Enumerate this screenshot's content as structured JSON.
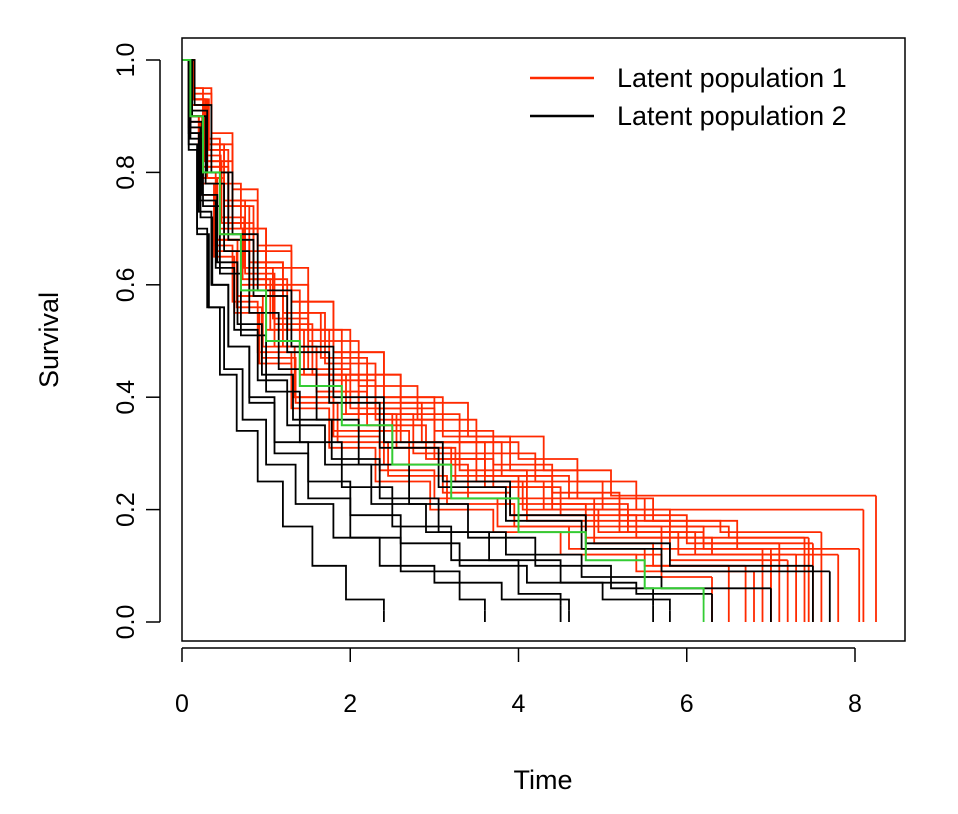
{
  "chart_data": {
    "type": "line",
    "step": true,
    "xlabel": "Time",
    "ylabel": "Survival",
    "xlim": [
      0,
      8.3
    ],
    "ylim": [
      0,
      1.0
    ],
    "x_ticks": [
      "0",
      "2",
      "4",
      "6",
      "8"
    ],
    "y_ticks": [
      "0.0",
      "0.2",
      "0.4",
      "0.6",
      "0.8",
      "1.0"
    ],
    "legend": {
      "placement": "top-right"
    },
    "legend_entries": [
      {
        "label": "Latent population 1",
        "color": "#ff2a00"
      },
      {
        "label": "Latent population 2",
        "color": "#000000"
      }
    ],
    "series": [
      {
        "name": "Latent population 1",
        "color": "#ff2a00",
        "curves": [
          {
            "x": [
              0,
              0.15,
              0.3,
              0.5,
              0.75,
              1.0,
              1.4,
              1.9,
              2.6,
              3.4,
              4.3,
              5.1,
              5.9,
              8.25
            ],
            "y": [
              1.0,
              0.93,
              0.85,
              0.75,
              0.66,
              0.59,
              0.52,
              0.44,
              0.39,
              0.33,
              0.27,
              0.225,
              0.225,
              0.225
            ]
          },
          {
            "x": [
              0,
              0.1,
              0.25,
              0.45,
              0.7,
              1.0,
              1.5,
              2.0,
              2.6,
              3.3,
              4.0,
              4.7,
              5.4,
              8.1
            ],
            "y": [
              1.0,
              0.95,
              0.86,
              0.78,
              0.7,
              0.63,
              0.52,
              0.44,
              0.37,
              0.32,
              0.29,
              0.25,
              0.2,
              0.2
            ]
          },
          {
            "x": [
              0,
              0.1,
              0.3,
              0.6,
              1.0,
              1.5,
              2.1,
              2.8,
              3.5,
              4.2,
              5.0,
              5.8,
              6.5,
              7.4
            ],
            "y": [
              1.0,
              0.92,
              0.82,
              0.7,
              0.6,
              0.5,
              0.42,
              0.36,
              0.3,
              0.25,
              0.2,
              0.17,
              0.15,
              0.15
            ]
          },
          {
            "x": [
              0,
              0.1,
              0.2,
              0.4,
              0.7,
              1.1,
              1.6,
              2.2,
              2.9,
              3.6,
              4.4,
              5.3,
              6.2,
              7.1
            ],
            "y": [
              1.0,
              0.9,
              0.8,
              0.68,
              0.58,
              0.49,
              0.41,
              0.35,
              0.29,
              0.24,
              0.2,
              0.17,
              0.14,
              0.14
            ]
          },
          {
            "x": [
              0,
              0.12,
              0.28,
              0.5,
              0.8,
              1.2,
              1.7,
              2.3,
              3.0,
              3.8,
              4.6,
              5.5,
              6.4,
              7.6
            ],
            "y": [
              1.0,
              0.93,
              0.84,
              0.74,
              0.64,
              0.55,
              0.46,
              0.38,
              0.32,
              0.26,
              0.22,
              0.18,
              0.16,
              0.16
            ]
          },
          {
            "x": [
              0,
              0.1,
              0.25,
              0.45,
              0.7,
              1.0,
              1.4,
              1.9,
              2.5,
              3.2,
              4.0,
              4.8,
              5.7,
              6.9
            ],
            "y": [
              1.0,
              0.9,
              0.79,
              0.69,
              0.6,
              0.52,
              0.44,
              0.37,
              0.31,
              0.26,
              0.21,
              0.17,
              0.13,
              0.13
            ]
          },
          {
            "x": [
              0,
              0.15,
              0.35,
              0.6,
              0.9,
              1.3,
              1.8,
              2.4,
              3.1,
              3.9,
              4.7,
              5.6,
              6.6,
              8.05
            ],
            "y": [
              1.0,
              0.94,
              0.85,
              0.75,
              0.66,
              0.57,
              0.48,
              0.4,
              0.33,
              0.27,
              0.22,
              0.18,
              0.13,
              0.13
            ]
          },
          {
            "x": [
              0,
              0.08,
              0.2,
              0.38,
              0.6,
              0.9,
              1.3,
              1.8,
              2.4,
              3.1,
              3.9,
              4.8,
              5.8,
              7.2
            ],
            "y": [
              1.0,
              0.9,
              0.78,
              0.67,
              0.57,
              0.48,
              0.4,
              0.34,
              0.28,
              0.23,
              0.19,
              0.15,
              0.11,
              0.11
            ]
          },
          {
            "x": [
              0,
              0.1,
              0.3,
              0.55,
              0.85,
              1.25,
              1.75,
              2.3,
              3.0,
              3.7,
              4.5,
              5.4,
              6.3,
              7.0
            ],
            "y": [
              1.0,
              0.91,
              0.81,
              0.71,
              0.61,
              0.52,
              0.43,
              0.36,
              0.29,
              0.24,
              0.19,
              0.15,
              0.12,
              0.12
            ]
          },
          {
            "x": [
              0,
              0.12,
              0.3,
              0.5,
              0.8,
              1.2,
              1.6,
              2.1,
              2.7,
              3.4,
              4.1,
              4.9,
              5.6,
              6.7
            ],
            "y": [
              1.0,
              0.9,
              0.79,
              0.68,
              0.58,
              0.49,
              0.41,
              0.34,
              0.28,
              0.22,
              0.18,
              0.14,
              0.1,
              0.1
            ]
          },
          {
            "x": [
              0,
              0.1,
              0.22,
              0.4,
              0.65,
              0.95,
              1.35,
              1.85,
              2.45,
              3.15,
              3.95,
              4.8,
              5.7,
              6.3
            ],
            "y": [
              1.0,
              0.89,
              0.78,
              0.66,
              0.56,
              0.47,
              0.39,
              0.32,
              0.26,
              0.21,
              0.17,
              0.12,
              0.08,
              0.08
            ]
          },
          {
            "x": [
              0,
              0.15,
              0.35,
              0.6,
              0.9,
              1.3,
              1.8,
              2.4,
              3.0,
              3.7,
              4.4,
              5.2,
              6.0,
              7.5
            ],
            "y": [
              1.0,
              0.95,
              0.87,
              0.77,
              0.67,
              0.57,
              0.48,
              0.4,
              0.34,
              0.28,
              0.23,
              0.19,
              0.14,
              0.14
            ]
          },
          {
            "x": [
              0,
              0.08,
              0.2,
              0.38,
              0.62,
              0.92,
              1.3,
              1.75,
              2.3,
              2.95,
              3.7,
              4.5,
              5.4,
              6.8
            ],
            "y": [
              1.0,
              0.88,
              0.76,
              0.65,
              0.55,
              0.46,
              0.38,
              0.31,
              0.25,
              0.2,
              0.16,
              0.12,
              0.09,
              0.09
            ]
          },
          {
            "x": [
              0,
              0.12,
              0.27,
              0.47,
              0.75,
              1.1,
              1.55,
              2.1,
              2.75,
              3.5,
              4.3,
              5.2,
              6.1,
              7.3
            ],
            "y": [
              1.0,
              0.92,
              0.82,
              0.71,
              0.62,
              0.53,
              0.44,
              0.37,
              0.3,
              0.25,
              0.2,
              0.16,
              0.12,
              0.12
            ]
          },
          {
            "x": [
              0,
              0.1,
              0.26,
              0.46,
              0.74,
              1.08,
              1.5,
              2.0,
              2.6,
              3.3,
              4.1,
              4.9,
              5.8,
              7.45
            ],
            "y": [
              1.0,
              0.93,
              0.83,
              0.72,
              0.63,
              0.54,
              0.45,
              0.38,
              0.32,
              0.27,
              0.22,
              0.18,
              0.15,
              0.15
            ]
          },
          {
            "x": [
              0,
              0.1,
              0.24,
              0.42,
              0.66,
              0.96,
              1.34,
              1.8,
              2.35,
              3.0,
              3.75,
              4.6,
              5.5,
              6.5
            ],
            "y": [
              1.0,
              0.9,
              0.79,
              0.68,
              0.58,
              0.49,
              0.4,
              0.33,
              0.27,
              0.22,
              0.17,
              0.13,
              0.1,
              0.1
            ]
          },
          {
            "x": [
              0,
              0.14,
              0.32,
              0.55,
              0.85,
              1.2,
              1.65,
              2.2,
              2.85,
              3.6,
              4.4,
              5.3,
              6.2,
              7.0
            ],
            "y": [
              1.0,
              0.93,
              0.84,
              0.74,
              0.64,
              0.55,
              0.47,
              0.39,
              0.32,
              0.26,
              0.21,
              0.16,
              0.13,
              0.13
            ]
          },
          {
            "x": [
              0,
              0.1,
              0.25,
              0.45,
              0.72,
              1.05,
              1.45,
              1.95,
              2.55,
              3.25,
              4.05,
              4.95,
              5.9,
              7.8
            ],
            "y": [
              1.0,
              0.92,
              0.81,
              0.7,
              0.61,
              0.52,
              0.44,
              0.37,
              0.31,
              0.25,
              0.2,
              0.16,
              0.12,
              0.12
            ]
          }
        ]
      },
      {
        "name": "Latent population 2",
        "color": "#000000",
        "curves": [
          {
            "x": [
              0,
              0.08,
              0.18,
              0.3,
              0.45,
              0.65,
              0.9,
              1.2,
              1.55,
              1.95,
              2.4
            ],
            "y": [
              1.0,
              0.85,
              0.7,
              0.56,
              0.44,
              0.34,
              0.25,
              0.17,
              0.1,
              0.04,
              0.02
            ]
          },
          {
            "x": [
              0,
              0.1,
              0.22,
              0.36,
              0.55,
              0.8,
              1.1,
              1.5,
              2.0,
              2.6,
              3.3,
              3.6
            ],
            "y": [
              1.0,
              0.86,
              0.72,
              0.6,
              0.49,
              0.39,
              0.3,
              0.22,
              0.15,
              0.09,
              0.04,
              0.02
            ]
          },
          {
            "x": [
              0,
              0.1,
              0.25,
              0.45,
              0.7,
              1.0,
              1.4,
              1.9,
              2.5,
              3.2,
              4.0,
              4.5
            ],
            "y": [
              1.0,
              0.87,
              0.74,
              0.62,
              0.51,
              0.41,
              0.32,
              0.24,
              0.17,
              0.11,
              0.05,
              0.03
            ]
          },
          {
            "x": [
              0,
              0.12,
              0.28,
              0.5,
              0.8,
              1.15,
              1.6,
              2.1,
              2.7,
              3.4,
              4.2,
              5.1,
              5.6
            ],
            "y": [
              1.0,
              0.9,
              0.78,
              0.66,
              0.55,
              0.45,
              0.36,
              0.28,
              0.21,
              0.15,
              0.1,
              0.06,
              0.03
            ]
          },
          {
            "x": [
              0,
              0.15,
              0.35,
              0.6,
              0.9,
              1.3,
              1.8,
              2.4,
              3.1,
              3.9,
              4.8,
              5.8,
              7.5
            ],
            "y": [
              1.0,
              0.92,
              0.8,
              0.69,
              0.59,
              0.49,
              0.4,
              0.32,
              0.25,
              0.19,
              0.14,
              0.1,
              0.1
            ]
          },
          {
            "x": [
              0,
              0.08,
              0.2,
              0.35,
              0.55,
              0.8,
              1.1,
              1.5,
              2.0,
              2.6,
              3.3,
              4.1,
              5.0,
              5.8
            ],
            "y": [
              1.0,
              0.87,
              0.73,
              0.6,
              0.49,
              0.4,
              0.32,
              0.25,
              0.19,
              0.14,
              0.1,
              0.07,
              0.04,
              0.02
            ]
          },
          {
            "x": [
              0,
              0.1,
              0.24,
              0.42,
              0.66,
              0.95,
              1.32,
              1.78,
              2.35,
              3.05,
              3.85,
              4.75,
              5.7,
              7.0
            ],
            "y": [
              1.0,
              0.89,
              0.76,
              0.64,
              0.53,
              0.44,
              0.36,
              0.29,
              0.22,
              0.16,
              0.12,
              0.08,
              0.06,
              0.06
            ]
          },
          {
            "x": [
              0,
              0.12,
              0.3,
              0.55,
              0.85,
              1.25,
              1.75,
              2.35,
              3.05,
              3.85,
              4.75,
              5.7,
              6.8,
              7.7
            ],
            "y": [
              1.0,
              0.91,
              0.8,
              0.68,
              0.58,
              0.48,
              0.39,
              0.31,
              0.24,
              0.18,
              0.13,
              0.09,
              0.09,
              0.09
            ]
          },
          {
            "x": [
              0,
              0.08,
              0.18,
              0.32,
              0.5,
              0.72,
              1.0,
              1.35,
              1.8,
              2.35,
              3.0,
              3.8,
              4.6
            ],
            "y": [
              1.0,
              0.84,
              0.69,
              0.56,
              0.45,
              0.36,
              0.28,
              0.21,
              0.15,
              0.1,
              0.07,
              0.04,
              0.02
            ]
          },
          {
            "x": [
              0,
              0.1,
              0.22,
              0.4,
              0.62,
              0.9,
              1.25,
              1.7,
              2.25,
              2.9,
              3.65,
              4.5,
              5.4,
              6.3
            ],
            "y": [
              1.0,
              0.88,
              0.75,
              0.63,
              0.52,
              0.43,
              0.35,
              0.28,
              0.21,
              0.16,
              0.11,
              0.07,
              0.05,
              0.05
            ]
          }
        ]
      },
      {
        "name": "",
        "color": "#33cc33",
        "curves": [
          {
            "x": [
              0,
              0.1,
              0.25,
              0.45,
              0.7,
              1.0,
              1.4,
              1.9,
              2.5,
              3.2,
              4.0,
              4.8,
              5.5,
              6.2
            ],
            "y": [
              1.0,
              0.9,
              0.8,
              0.69,
              0.59,
              0.5,
              0.42,
              0.35,
              0.28,
              0.22,
              0.16,
              0.11,
              0.06,
              0.04
            ]
          }
        ]
      }
    ]
  }
}
